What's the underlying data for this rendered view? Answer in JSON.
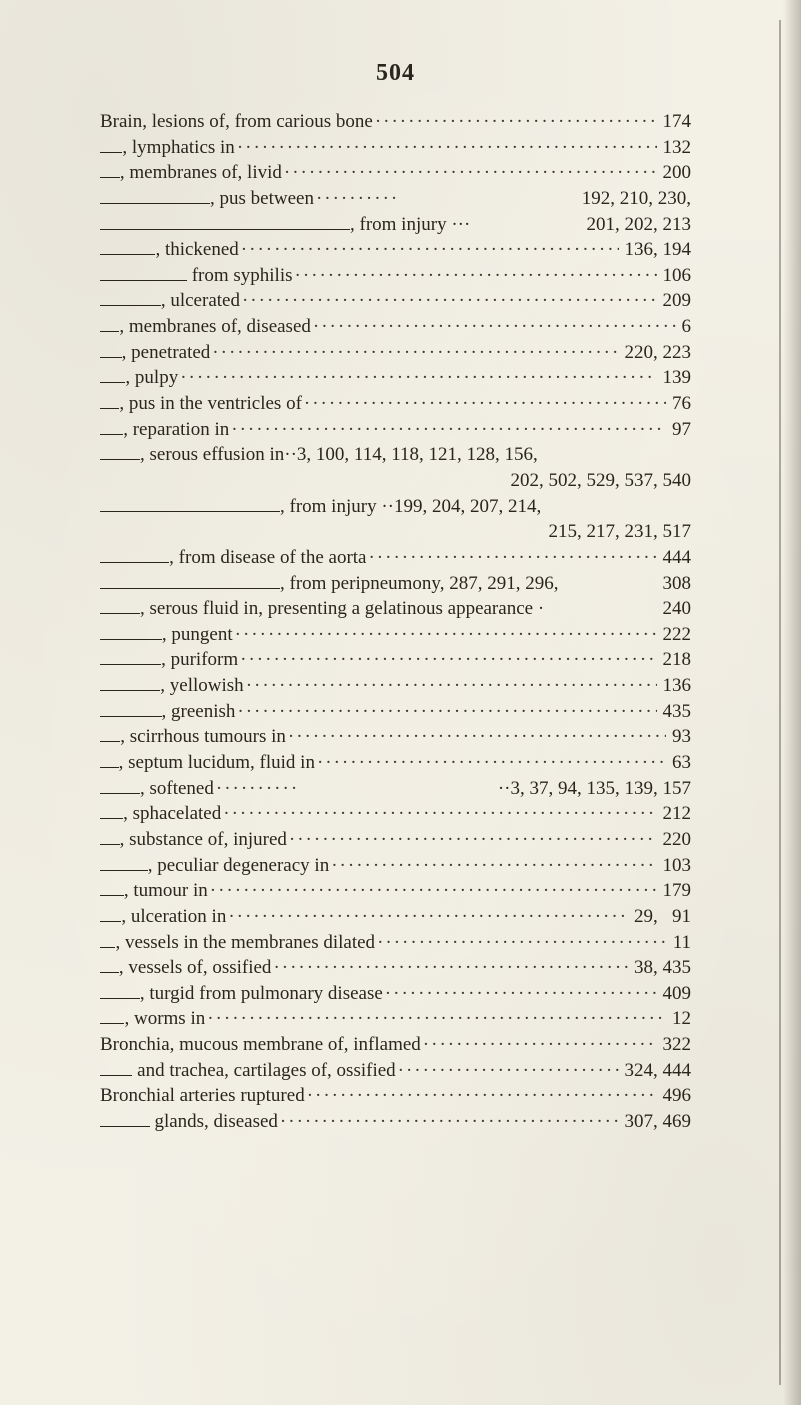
{
  "page_number": "504",
  "typography": {
    "body_fontsize_pt": 14,
    "header_fontsize_pt": 18,
    "font_family": "Times New Roman, serif",
    "text_color": "#2a261d",
    "background_color": "#f3f0e6"
  },
  "entries": [
    {
      "lead": "Brain, lesions of, from carious bone",
      "refs": "174",
      "rule": ""
    },
    {
      "lead": ", lymphatics in",
      "refs": "132",
      "rule": "s"
    },
    {
      "lead": ", membranes of, livid",
      "refs": "200",
      "rule": "s"
    },
    {
      "lead": ", pus between",
      "refs": "192, 210, 230,",
      "rule": "m",
      "dots": "short"
    },
    {
      "lead": ", from injury",
      "refs": "201, 202, 213",
      "rule": "xl",
      "dots": "none",
      "predots": true
    },
    {
      "lead": ", thickened",
      "refs": "136, 194",
      "rule": "m"
    },
    {
      "lead": " from syphilis",
      "refs": "106",
      "rule": "l"
    },
    {
      "lead": ", ulcerated",
      "refs": "209",
      "rule": "m"
    },
    {
      "lead": ", membranes of, diseased",
      "refs": "6",
      "rule": "s"
    },
    {
      "lead": ", penetrated",
      "refs": "220, 223",
      "rule": "s"
    },
    {
      "lead": ", pulpy",
      "refs": "139",
      "rule": "s"
    },
    {
      "lead": ", pus in the ventricles of",
      "refs": "76",
      "rule": "s"
    },
    {
      "lead": ", reparation in",
      "refs": "97",
      "rule": "s"
    },
    {
      "lead": ", serous effusion in··3, 100, 114, 118, 121, 128, 156,",
      "refs": "",
      "rule": "s",
      "dots": "none"
    },
    {
      "lead": "",
      "refs": "202, 502, 529, 537, 540",
      "rule": "",
      "dots": "none",
      "align": "right"
    },
    {
      "lead": ", from injury ··199, 204, 207, 214,",
      "refs": "",
      "rule": "l",
      "dots": "none"
    },
    {
      "lead": "",
      "refs": "215, 217, 231, 517",
      "rule": "",
      "dots": "none",
      "align": "right"
    },
    {
      "lead": ", from disease of the aorta",
      "refs": "444",
      "rule": "l"
    },
    {
      "lead": ", from peripneumony, 287, 291, 296,",
      "refs": "308",
      "rule": "l",
      "dots": "none"
    },
    {
      "lead": ", serous fluid in, presenting a gelatinous appearance ·",
      "refs": "240",
      "rule": "s",
      "dots": "none"
    },
    {
      "lead": ", pungent",
      "refs": "222",
      "rule": "m"
    },
    {
      "lead": ", puriform",
      "refs": "218",
      "rule": "m"
    },
    {
      "lead": ", yellowish",
      "refs": "136",
      "rule": "m"
    },
    {
      "lead": ", greenish",
      "refs": "435",
      "rule": "m"
    },
    {
      "lead": ", scirrhous tumours in",
      "refs": "93",
      "rule": "s"
    },
    {
      "lead": ", septum lucidum, fluid in",
      "refs": "63",
      "rule": "s"
    },
    {
      "lead": ", softened",
      "refs": "··3, 37, 94, 135, 139, 157",
      "rule": "s",
      "dots": "short"
    },
    {
      "lead": ", sphacelated",
      "refs": "212",
      "rule": "s"
    },
    {
      "lead": ", substance of, injured",
      "refs": "220",
      "rule": "s"
    },
    {
      "lead": ", peculiar degeneracy in",
      "refs": "103",
      "rule": "m"
    },
    {
      "lead": ", tumour in",
      "refs": "179",
      "rule": "s"
    },
    {
      "lead": ", ulceration in",
      "refs": "29,   91",
      "rule": "s"
    },
    {
      "lead": ", vessels in the membranes dilated",
      "refs": "11",
      "rule": "s"
    },
    {
      "lead": ", vessels of, ossified",
      "refs": "38, 435",
      "rule": "s"
    },
    {
      "lead": ", turgid from pulmonary disease",
      "refs": "409",
      "rule": "m"
    },
    {
      "lead": ", worms in",
      "refs": "12",
      "rule": "s"
    },
    {
      "lead": "Bronchia, mucous membrane of, inflamed",
      "refs": "322",
      "rule": ""
    },
    {
      "lead": " and trachea, cartilages of, ossified",
      "refs": "324, 444",
      "rule": "m"
    },
    {
      "lead": "Bronchial arteries ruptured",
      "refs": "496",
      "rule": ""
    },
    {
      "lead": " glands, diseased",
      "refs": "307, 469",
      "rule": "m"
    }
  ]
}
